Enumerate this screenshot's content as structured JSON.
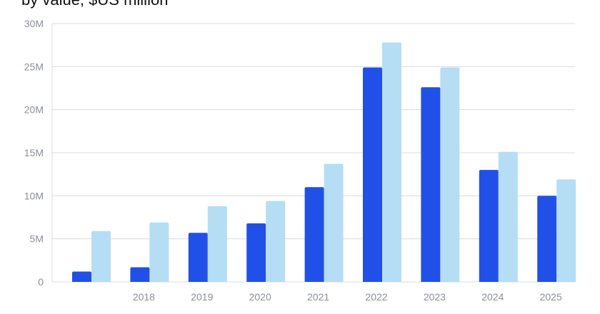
{
  "header": {
    "subtitle": "by value, $US million"
  },
  "chart_data": {
    "type": "bar",
    "categories": [
      "",
      "2018",
      "2019",
      "2020",
      "2021",
      "2022",
      "2023",
      "2024",
      "2025"
    ],
    "series": [
      {
        "color": "#2150e8",
        "values": [
          1.2,
          1.7,
          5.7,
          6.8,
          11.0,
          24.9,
          22.6,
          13.0,
          10.0
        ]
      },
      {
        "color": "#b5def4",
        "values": [
          5.9,
          6.9,
          8.8,
          9.4,
          13.7,
          27.8,
          24.9,
          15.1,
          11.9
        ]
      }
    ],
    "yticks": [
      "0",
      "5M",
      "10M",
      "15M",
      "20M",
      "25M",
      "30M"
    ],
    "ylim": [
      0,
      30
    ],
    "grid": true,
    "colors": {
      "grid": "#d9dce1",
      "tick_text": "#8a8f99"
    }
  }
}
